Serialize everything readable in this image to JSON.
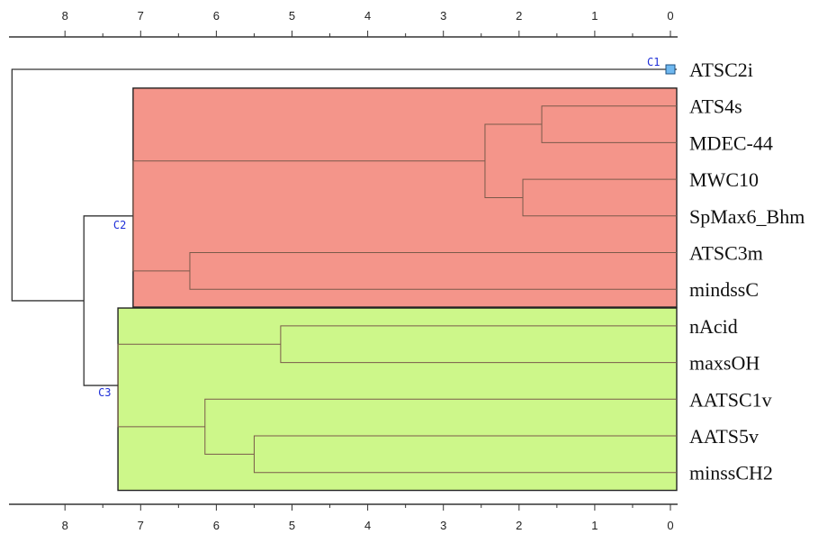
{
  "axis": {
    "ticks": [
      8,
      7,
      6,
      5,
      4,
      3,
      2,
      1,
      0
    ],
    "range": [
      8.7,
      0
    ]
  },
  "leaves": [
    "ATSC2i",
    "ATS4s",
    "MDEC-44",
    "MWC10",
    "SpMax6_Bhm",
    "ATSC3m",
    "mindssC",
    "nAcid",
    "maxsOH",
    "AATSC1v",
    "AATS5v",
    "minssCH2"
  ],
  "colors": {
    "c2_fill": "#f4958a",
    "c3_fill": "#cdf78a",
    "c1_marker": "#6fb8f0"
  },
  "clusters": [
    {
      "name": "C1",
      "leaf_start": 0,
      "leaf_end": 0,
      "height": 0
    },
    {
      "name": "C2",
      "leaf_start": 1,
      "leaf_end": 6,
      "height": 7.1,
      "fill": "#f4958a"
    },
    {
      "name": "C3",
      "leaf_start": 7,
      "leaf_end": 11,
      "height": 7.3,
      "fill": "#cdf78a"
    }
  ],
  "merges": [
    {
      "a": "ATS4s",
      "b": "MDEC-44",
      "height": 1.7,
      "id": "m1"
    },
    {
      "a": "MWC10",
      "b": "SpMax6_Bhm",
      "height": 1.95,
      "id": "m2"
    },
    {
      "a": "m1",
      "b": "m2",
      "height": 2.45,
      "id": "m3"
    },
    {
      "a": "ATSC3m",
      "b": "mindssC",
      "height": 6.35,
      "id": "m4"
    },
    {
      "a": "m3",
      "b": "m4",
      "height": 7.1,
      "id": "c2"
    },
    {
      "a": "nAcid",
      "b": "maxsOH",
      "height": 5.15,
      "id": "m5"
    },
    {
      "a": "AATS5v",
      "b": "minssCH2",
      "height": 5.5,
      "id": "m6"
    },
    {
      "a": "AATSC1v",
      "b": "m6",
      "height": 6.15,
      "id": "m7"
    },
    {
      "a": "m5",
      "b": "m7",
      "height": 7.3,
      "id": "c3"
    },
    {
      "a": "c2",
      "b": "c3",
      "height": 7.75,
      "id": "m8"
    },
    {
      "a": "ATSC2i",
      "b": "m8",
      "height": 8.7,
      "id": "root"
    }
  ]
}
